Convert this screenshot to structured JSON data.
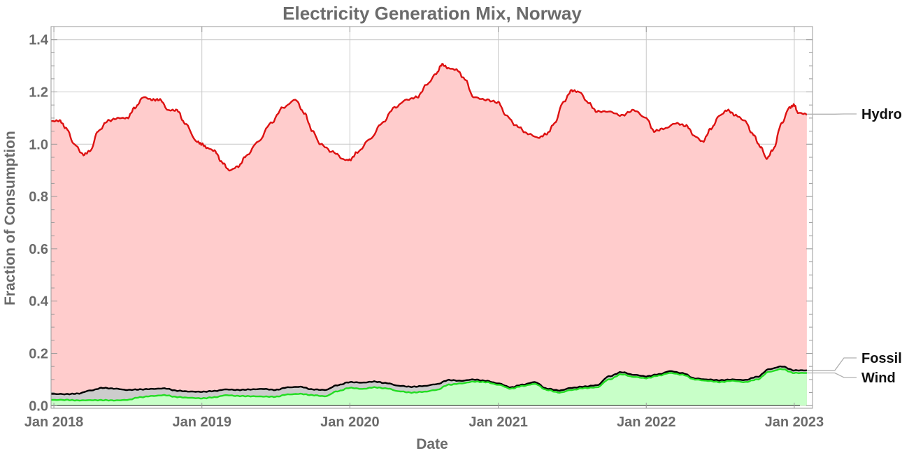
{
  "chart_data": {
    "type": "area",
    "title": "Electricity Generation Mix, Norway",
    "xlabel": "Date",
    "ylabel": "Fraction of Consumption",
    "x_range": [
      "2017-12-25",
      "2023-02-15"
    ],
    "ylim": [
      -0.01,
      1.45
    ],
    "grid": true,
    "x_ticks": [
      {
        "date": "2018-01-01",
        "label": "Jan 2018"
      },
      {
        "date": "2019-01-01",
        "label": "Jan 2019"
      },
      {
        "date": "2020-01-01",
        "label": "Jan 2020"
      },
      {
        "date": "2021-01-01",
        "label": "Jan 2021"
      },
      {
        "date": "2022-01-01",
        "label": "Jan 2022"
      },
      {
        "date": "2023-01-01",
        "label": "Jan 2023"
      }
    ],
    "y_ticks": [
      {
        "value": 0.0,
        "label": "0.0"
      },
      {
        "value": 0.2,
        "label": "0.2"
      },
      {
        "value": 0.4,
        "label": "0.4"
      },
      {
        "value": 0.6,
        "label": "0.6"
      },
      {
        "value": 0.8,
        "label": "0.8"
      },
      {
        "value": 1.0,
        "label": "1.0"
      },
      {
        "value": 1.2,
        "label": "1.2"
      },
      {
        "value": 1.4,
        "label": "1.4"
      }
    ],
    "series": [
      {
        "name": "Wind",
        "line_color": "#22dd22",
        "fill_color": "#c8ffc8",
        "points": [
          [
            "2017-12-25",
            0.022
          ],
          [
            "2018-02-01",
            0.022
          ],
          [
            "2018-03-01",
            0.02
          ],
          [
            "2018-04-01",
            0.021
          ],
          [
            "2018-05-01",
            0.021
          ],
          [
            "2018-06-01",
            0.02
          ],
          [
            "2018-07-01",
            0.022
          ],
          [
            "2018-08-01",
            0.032
          ],
          [
            "2018-09-01",
            0.037
          ],
          [
            "2018-10-01",
            0.04
          ],
          [
            "2018-11-01",
            0.033
          ],
          [
            "2018-12-01",
            0.03
          ],
          [
            "2019-01-01",
            0.028
          ],
          [
            "2019-02-01",
            0.032
          ],
          [
            "2019-03-01",
            0.04
          ],
          [
            "2019-04-01",
            0.037
          ],
          [
            "2019-05-01",
            0.036
          ],
          [
            "2019-06-01",
            0.035
          ],
          [
            "2019-07-01",
            0.034
          ],
          [
            "2019-08-01",
            0.043
          ],
          [
            "2019-09-01",
            0.045
          ],
          [
            "2019-10-01",
            0.04
          ],
          [
            "2019-11-01",
            0.036
          ],
          [
            "2019-12-01",
            0.055
          ],
          [
            "2020-01-01",
            0.068
          ],
          [
            "2020-02-01",
            0.064
          ],
          [
            "2020-03-01",
            0.07
          ],
          [
            "2020-04-01",
            0.066
          ],
          [
            "2020-05-01",
            0.055
          ],
          [
            "2020-06-01",
            0.05
          ],
          [
            "2020-07-01",
            0.053
          ],
          [
            "2020-08-01",
            0.06
          ],
          [
            "2020-09-01",
            0.08
          ],
          [
            "2020-10-01",
            0.085
          ],
          [
            "2020-11-01",
            0.092
          ],
          [
            "2020-12-01",
            0.09
          ],
          [
            "2021-01-01",
            0.08
          ],
          [
            "2021-02-01",
            0.065
          ],
          [
            "2021-03-01",
            0.075
          ],
          [
            "2021-04-01",
            0.083
          ],
          [
            "2021-05-01",
            0.06
          ],
          [
            "2021-06-01",
            0.05
          ],
          [
            "2021-07-01",
            0.06
          ],
          [
            "2021-08-01",
            0.067
          ],
          [
            "2021-09-01",
            0.07
          ],
          [
            "2021-10-01",
            0.1
          ],
          [
            "2021-11-01",
            0.12
          ],
          [
            "2021-12-01",
            0.11
          ],
          [
            "2022-01-01",
            0.105
          ],
          [
            "2022-02-01",
            0.115
          ],
          [
            "2022-03-01",
            0.125
          ],
          [
            "2022-04-01",
            0.118
          ],
          [
            "2022-05-01",
            0.1
          ],
          [
            "2022-06-01",
            0.095
          ],
          [
            "2022-07-01",
            0.09
          ],
          [
            "2022-08-01",
            0.095
          ],
          [
            "2022-09-01",
            0.09
          ],
          [
            "2022-10-01",
            0.1
          ],
          [
            "2022-11-01",
            0.13
          ],
          [
            "2022-12-01",
            0.14
          ],
          [
            "2023-01-01",
            0.125
          ],
          [
            "2023-02-01",
            0.125
          ]
        ]
      },
      {
        "name": "Fossil",
        "line_color": "#000000",
        "fill_color": "#cccccc",
        "points": [
          [
            "2017-12-25",
            0.045
          ],
          [
            "2018-02-01",
            0.044
          ],
          [
            "2018-03-01",
            0.046
          ],
          [
            "2018-04-01",
            0.058
          ],
          [
            "2018-05-01",
            0.068
          ],
          [
            "2018-06-01",
            0.065
          ],
          [
            "2018-07-01",
            0.06
          ],
          [
            "2018-08-01",
            0.062
          ],
          [
            "2018-09-01",
            0.064
          ],
          [
            "2018-10-01",
            0.066
          ],
          [
            "2018-11-01",
            0.057
          ],
          [
            "2018-12-01",
            0.054
          ],
          [
            "2019-01-01",
            0.053
          ],
          [
            "2019-02-01",
            0.056
          ],
          [
            "2019-03-01",
            0.062
          ],
          [
            "2019-04-01",
            0.06
          ],
          [
            "2019-05-01",
            0.062
          ],
          [
            "2019-06-01",
            0.064
          ],
          [
            "2019-07-01",
            0.06
          ],
          [
            "2019-08-01",
            0.07
          ],
          [
            "2019-09-01",
            0.072
          ],
          [
            "2019-10-01",
            0.062
          ],
          [
            "2019-11-01",
            0.06
          ],
          [
            "2019-12-01",
            0.078
          ],
          [
            "2020-01-01",
            0.09
          ],
          [
            "2020-02-01",
            0.088
          ],
          [
            "2020-03-01",
            0.092
          ],
          [
            "2020-04-01",
            0.086
          ],
          [
            "2020-05-01",
            0.076
          ],
          [
            "2020-06-01",
            0.072
          ],
          [
            "2020-07-01",
            0.075
          ],
          [
            "2020-08-01",
            0.082
          ],
          [
            "2020-09-01",
            0.098
          ],
          [
            "2020-10-01",
            0.095
          ],
          [
            "2020-11-01",
            0.1
          ],
          [
            "2020-12-01",
            0.095
          ],
          [
            "2021-01-01",
            0.085
          ],
          [
            "2021-02-01",
            0.07
          ],
          [
            "2021-03-01",
            0.08
          ],
          [
            "2021-04-01",
            0.09
          ],
          [
            "2021-05-01",
            0.065
          ],
          [
            "2021-06-01",
            0.058
          ],
          [
            "2021-07-01",
            0.068
          ],
          [
            "2021-08-01",
            0.073
          ],
          [
            "2021-09-01",
            0.078
          ],
          [
            "2021-10-01",
            0.112
          ],
          [
            "2021-11-01",
            0.128
          ],
          [
            "2021-12-01",
            0.118
          ],
          [
            "2022-01-01",
            0.112
          ],
          [
            "2022-02-01",
            0.12
          ],
          [
            "2022-03-01",
            0.132
          ],
          [
            "2022-04-01",
            0.124
          ],
          [
            "2022-05-01",
            0.104
          ],
          [
            "2022-06-01",
            0.1
          ],
          [
            "2022-07-01",
            0.097
          ],
          [
            "2022-08-01",
            0.1
          ],
          [
            "2022-09-01",
            0.098
          ],
          [
            "2022-10-01",
            0.11
          ],
          [
            "2022-11-01",
            0.14
          ],
          [
            "2022-12-01",
            0.15
          ],
          [
            "2023-01-01",
            0.135
          ],
          [
            "2023-02-01",
            0.135
          ]
        ]
      },
      {
        "name": "Hydro",
        "line_color": "#dd1111",
        "fill_color": "#ffcccc",
        "points": [
          [
            "2017-12-25",
            1.088
          ],
          [
            "2018-01-15",
            1.09
          ],
          [
            "2018-02-01",
            1.06
          ],
          [
            "2018-02-20",
            1.0
          ],
          [
            "2018-03-15",
            0.96
          ],
          [
            "2018-04-01",
            0.975
          ],
          [
            "2018-04-20",
            1.05
          ],
          [
            "2018-05-15",
            1.09
          ],
          [
            "2018-06-10",
            1.1
          ],
          [
            "2018-07-01",
            1.1
          ],
          [
            "2018-07-20",
            1.14
          ],
          [
            "2018-08-10",
            1.18
          ],
          [
            "2018-09-01",
            1.17
          ],
          [
            "2018-09-20",
            1.17
          ],
          [
            "2018-10-10",
            1.13
          ],
          [
            "2018-11-01",
            1.13
          ],
          [
            "2018-11-20",
            1.08
          ],
          [
            "2018-12-20",
            1.01
          ],
          [
            "2019-01-01",
            1.0
          ],
          [
            "2019-01-15",
            0.985
          ],
          [
            "2019-02-01",
            0.975
          ],
          [
            "2019-02-20",
            0.93
          ],
          [
            "2019-03-10",
            0.9
          ],
          [
            "2019-04-01",
            0.915
          ],
          [
            "2019-04-20",
            0.955
          ],
          [
            "2019-05-20",
            1.01
          ],
          [
            "2019-06-20",
            1.08
          ],
          [
            "2019-07-20",
            1.14
          ],
          [
            "2019-08-20",
            1.17
          ],
          [
            "2019-09-10",
            1.12
          ],
          [
            "2019-10-01",
            1.05
          ],
          [
            "2019-10-20",
            1.0
          ],
          [
            "2019-11-20",
            0.97
          ],
          [
            "2019-12-20",
            0.94
          ],
          [
            "2020-01-01",
            0.94
          ],
          [
            "2020-01-20",
            0.97
          ],
          [
            "2020-02-20",
            1.02
          ],
          [
            "2020-03-20",
            1.08
          ],
          [
            "2020-04-20",
            1.14
          ],
          [
            "2020-05-20",
            1.17
          ],
          [
            "2020-06-15",
            1.18
          ],
          [
            "2020-07-10",
            1.23
          ],
          [
            "2020-08-01",
            1.27
          ],
          [
            "2020-08-15",
            1.305
          ],
          [
            "2020-09-01",
            1.29
          ],
          [
            "2020-09-20",
            1.285
          ],
          [
            "2020-10-10",
            1.25
          ],
          [
            "2020-11-01",
            1.18
          ],
          [
            "2020-12-01",
            1.17
          ],
          [
            "2021-01-01",
            1.16
          ],
          [
            "2021-01-20",
            1.11
          ],
          [
            "2021-02-15",
            1.07
          ],
          [
            "2021-03-15",
            1.04
          ],
          [
            "2021-04-10",
            1.025
          ],
          [
            "2021-05-01",
            1.04
          ],
          [
            "2021-05-20",
            1.08
          ],
          [
            "2021-06-10",
            1.16
          ],
          [
            "2021-07-01",
            1.205
          ],
          [
            "2021-07-20",
            1.2
          ],
          [
            "2021-08-10",
            1.16
          ],
          [
            "2021-09-01",
            1.125
          ],
          [
            "2021-10-01",
            1.125
          ],
          [
            "2021-11-01",
            1.11
          ],
          [
            "2021-12-01",
            1.13
          ],
          [
            "2022-01-01",
            1.1
          ],
          [
            "2022-01-20",
            1.05
          ],
          [
            "2022-02-15",
            1.06
          ],
          [
            "2022-03-15",
            1.08
          ],
          [
            "2022-04-10",
            1.07
          ],
          [
            "2022-05-01",
            1.03
          ],
          [
            "2022-05-20",
            1.01
          ],
          [
            "2022-06-10",
            1.06
          ],
          [
            "2022-07-01",
            1.11
          ],
          [
            "2022-07-20",
            1.13
          ],
          [
            "2022-08-10",
            1.11
          ],
          [
            "2022-09-01",
            1.09
          ],
          [
            "2022-09-20",
            1.04
          ],
          [
            "2022-10-10",
            0.99
          ],
          [
            "2022-10-25",
            0.945
          ],
          [
            "2022-11-10",
            0.98
          ],
          [
            "2022-12-01",
            1.08
          ],
          [
            "2022-12-20",
            1.14
          ],
          [
            "2023-01-01",
            1.15
          ],
          [
            "2023-01-10",
            1.12
          ],
          [
            "2023-02-01",
            1.115
          ]
        ]
      }
    ],
    "legend": [
      {
        "name": "Hydro",
        "at_value": 1.115
      },
      {
        "name": "Fossil",
        "at_value": 0.135
      },
      {
        "name": "Wind",
        "at_value": 0.125
      }
    ]
  }
}
